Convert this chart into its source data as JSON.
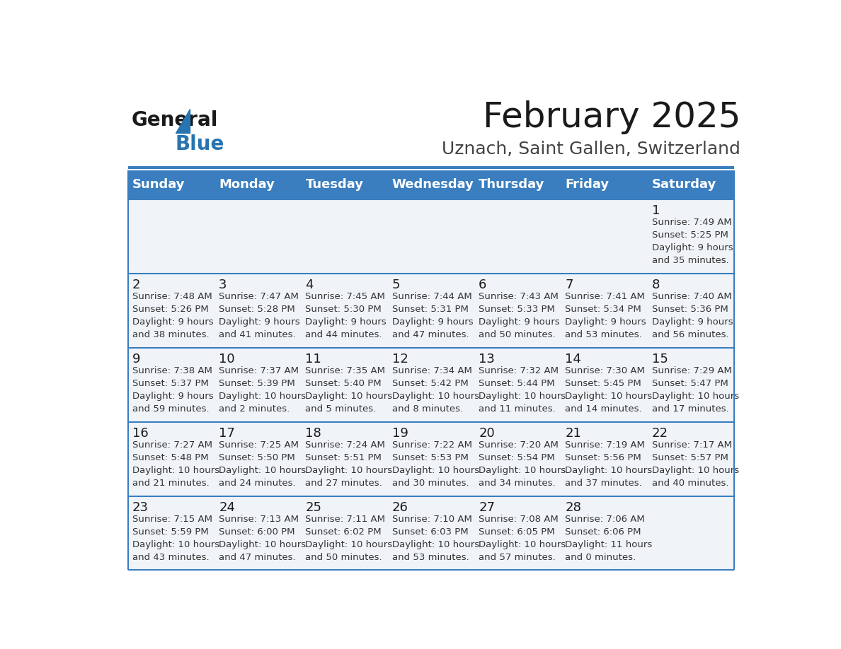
{
  "title": "February 2025",
  "subtitle": "Uznach, Saint Gallen, Switzerland",
  "days_of_week": [
    "Sunday",
    "Monday",
    "Tuesday",
    "Wednesday",
    "Thursday",
    "Friday",
    "Saturday"
  ],
  "header_bg": "#3a7ebf",
  "header_text": "#ffffff",
  "row_bg": "#f0f4f8",
  "cell_text_color": "#333333",
  "day_num_color": "#1a1a1a",
  "divider_color": "#3a7ebf",
  "bg_color": "#ffffff",
  "calendar_data": [
    [
      null,
      null,
      null,
      null,
      null,
      null,
      {
        "day": 1,
        "sunrise": "7:49 AM",
        "sunset": "5:25 PM",
        "daylight": "9 hours\nand 35 minutes."
      }
    ],
    [
      {
        "day": 2,
        "sunrise": "7:48 AM",
        "sunset": "5:26 PM",
        "daylight": "9 hours\nand 38 minutes."
      },
      {
        "day": 3,
        "sunrise": "7:47 AM",
        "sunset": "5:28 PM",
        "daylight": "9 hours\nand 41 minutes."
      },
      {
        "day": 4,
        "sunrise": "7:45 AM",
        "sunset": "5:30 PM",
        "daylight": "9 hours\nand 44 minutes."
      },
      {
        "day": 5,
        "sunrise": "7:44 AM",
        "sunset": "5:31 PM",
        "daylight": "9 hours\nand 47 minutes."
      },
      {
        "day": 6,
        "sunrise": "7:43 AM",
        "sunset": "5:33 PM",
        "daylight": "9 hours\nand 50 minutes."
      },
      {
        "day": 7,
        "sunrise": "7:41 AM",
        "sunset": "5:34 PM",
        "daylight": "9 hours\nand 53 minutes."
      },
      {
        "day": 8,
        "sunrise": "7:40 AM",
        "sunset": "5:36 PM",
        "daylight": "9 hours\nand 56 minutes."
      }
    ],
    [
      {
        "day": 9,
        "sunrise": "7:38 AM",
        "sunset": "5:37 PM",
        "daylight": "9 hours\nand 59 minutes."
      },
      {
        "day": 10,
        "sunrise": "7:37 AM",
        "sunset": "5:39 PM",
        "daylight": "10 hours\nand 2 minutes."
      },
      {
        "day": 11,
        "sunrise": "7:35 AM",
        "sunset": "5:40 PM",
        "daylight": "10 hours\nand 5 minutes."
      },
      {
        "day": 12,
        "sunrise": "7:34 AM",
        "sunset": "5:42 PM",
        "daylight": "10 hours\nand 8 minutes."
      },
      {
        "day": 13,
        "sunrise": "7:32 AM",
        "sunset": "5:44 PM",
        "daylight": "10 hours\nand 11 minutes."
      },
      {
        "day": 14,
        "sunrise": "7:30 AM",
        "sunset": "5:45 PM",
        "daylight": "10 hours\nand 14 minutes."
      },
      {
        "day": 15,
        "sunrise": "7:29 AM",
        "sunset": "5:47 PM",
        "daylight": "10 hours\nand 17 minutes."
      }
    ],
    [
      {
        "day": 16,
        "sunrise": "7:27 AM",
        "sunset": "5:48 PM",
        "daylight": "10 hours\nand 21 minutes."
      },
      {
        "day": 17,
        "sunrise": "7:25 AM",
        "sunset": "5:50 PM",
        "daylight": "10 hours\nand 24 minutes."
      },
      {
        "day": 18,
        "sunrise": "7:24 AM",
        "sunset": "5:51 PM",
        "daylight": "10 hours\nand 27 minutes."
      },
      {
        "day": 19,
        "sunrise": "7:22 AM",
        "sunset": "5:53 PM",
        "daylight": "10 hours\nand 30 minutes."
      },
      {
        "day": 20,
        "sunrise": "7:20 AM",
        "sunset": "5:54 PM",
        "daylight": "10 hours\nand 34 minutes."
      },
      {
        "day": 21,
        "sunrise": "7:19 AM",
        "sunset": "5:56 PM",
        "daylight": "10 hours\nand 37 minutes."
      },
      {
        "day": 22,
        "sunrise": "7:17 AM",
        "sunset": "5:57 PM",
        "daylight": "10 hours\nand 40 minutes."
      }
    ],
    [
      {
        "day": 23,
        "sunrise": "7:15 AM",
        "sunset": "5:59 PM",
        "daylight": "10 hours\nand 43 minutes."
      },
      {
        "day": 24,
        "sunrise": "7:13 AM",
        "sunset": "6:00 PM",
        "daylight": "10 hours\nand 47 minutes."
      },
      {
        "day": 25,
        "sunrise": "7:11 AM",
        "sunset": "6:02 PM",
        "daylight": "10 hours\nand 50 minutes."
      },
      {
        "day": 26,
        "sunrise": "7:10 AM",
        "sunset": "6:03 PM",
        "daylight": "10 hours\nand 53 minutes."
      },
      {
        "day": 27,
        "sunrise": "7:08 AM",
        "sunset": "6:05 PM",
        "daylight": "10 hours\nand 57 minutes."
      },
      {
        "day": 28,
        "sunrise": "7:06 AM",
        "sunset": "6:06 PM",
        "daylight": "11 hours\nand 0 minutes."
      },
      null
    ]
  ],
  "logo_text_general": "General",
  "logo_text_blue": "Blue",
  "logo_triangle_color": "#2874b0",
  "title_fontsize": 36,
  "subtitle_fontsize": 18,
  "header_fontsize": 13,
  "day_num_fontsize": 13,
  "cell_fontsize": 9.5
}
